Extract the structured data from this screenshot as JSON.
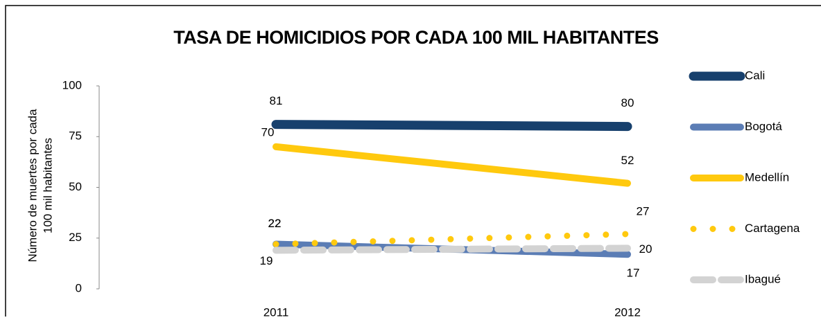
{
  "chart_data": {
    "type": "line",
    "title": "TASA DE HOMICIDIOS POR CADA 100 MIL HABITANTES",
    "y_label": [
      "Número de muertes por cada",
      "100 mil habitantes"
    ],
    "categories": [
      "2011",
      "2012"
    ],
    "series": [
      {
        "name": "Cali",
        "color": "#17406d",
        "style": "solid",
        "values": [
          81,
          80
        ]
      },
      {
        "name": "Bogotá",
        "color": "#5b7db5",
        "style": "solid",
        "values": [
          22,
          17
        ]
      },
      {
        "name": "Medellín",
        "color": "#ffc90e",
        "style": "solid",
        "values": [
          70,
          52
        ]
      },
      {
        "name": "Cartagena",
        "color": "#ffc90e",
        "style": "dotted",
        "values": [
          22,
          27
        ]
      },
      {
        "name": "Ibagué",
        "color": "#d3d3d3",
        "style": "dashed",
        "values": [
          19,
          20
        ]
      }
    ],
    "ylim": [
      0,
      100
    ],
    "yticks": [
      0,
      25,
      50,
      75,
      100
    ],
    "grid": false,
    "legend": "right"
  }
}
